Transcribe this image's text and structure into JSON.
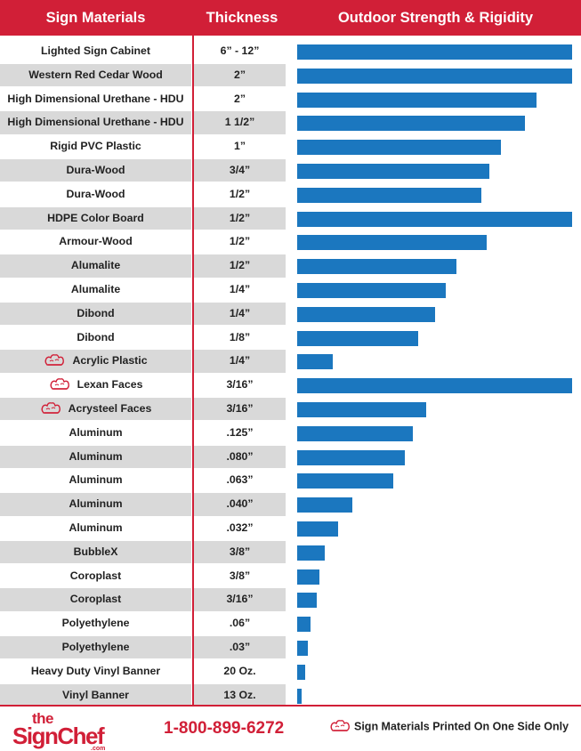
{
  "header": {
    "col_material": "Sign Materials",
    "col_thickness": "Thickness",
    "col_strength": "Outdoor Strength & Rigidity"
  },
  "colors": {
    "brand_red": "#d11f37",
    "bar_blue": "#1b77bf",
    "row_shade": "#d9d9d9"
  },
  "chart_data": {
    "type": "bar",
    "orientation": "horizontal",
    "title": "Outdoor Strength & Rigidity",
    "categories": [
      "Lighted Sign Cabinet",
      "Western Red Cedar Wood",
      "High Dimensional Urethane - HDU",
      "High Dimensional Urethane - HDU",
      "Rigid PVC Plastic",
      "Dura-Wood",
      "Dura-Wood",
      "HDPE Color Board",
      "Armour-Wood",
      "Alumalite",
      "Alumalite",
      "Dibond",
      "Dibond",
      "Acrylic Plastic",
      "Lexan Faces",
      "Acrysteel Faces",
      "Aluminum",
      "Aluminum",
      "Aluminum",
      "Aluminum",
      "Aluminum",
      "BubbleX",
      "Coroplast",
      "Coroplast",
      "Polyethylene",
      "Polyethylene",
      "Heavy Duty Vinyl Banner",
      "Vinyl Banner"
    ],
    "thickness": [
      "6” - 12”",
      "2”",
      "2”",
      "1 1/2”",
      "1”",
      "3/4”",
      "1/2”",
      "1/2”",
      "1/2”",
      "1/2”",
      "1/4”",
      "1/4”",
      "1/8”",
      "1/4”",
      "3/16”",
      "3/16”",
      ".125”",
      ".080”",
      ".063”",
      ".040”",
      ".032”",
      "3/8”",
      "3/8”",
      "3/16”",
      ".06”",
      ".03”",
      "20 Oz.",
      "13 Oz."
    ],
    "one_side_only": [
      false,
      false,
      false,
      false,
      false,
      false,
      false,
      false,
      false,
      false,
      false,
      false,
      false,
      true,
      true,
      true,
      false,
      false,
      false,
      false,
      false,
      false,
      false,
      false,
      false,
      false,
      false,
      false
    ],
    "values": [
      100,
      100,
      87,
      83,
      74,
      70,
      67,
      100,
      69,
      58,
      54,
      50,
      44,
      13,
      100,
      47,
      42,
      39,
      35,
      20,
      15,
      10,
      8,
      7,
      5,
      4,
      3,
      1.5
    ],
    "xlim": [
      0,
      100
    ]
  },
  "footer": {
    "logo": "the SignChef .com",
    "phone": "1-800-899-6272",
    "note": "Sign Materials Printed On One Side Only",
    "chef_icon": "chef-hat-icon"
  }
}
